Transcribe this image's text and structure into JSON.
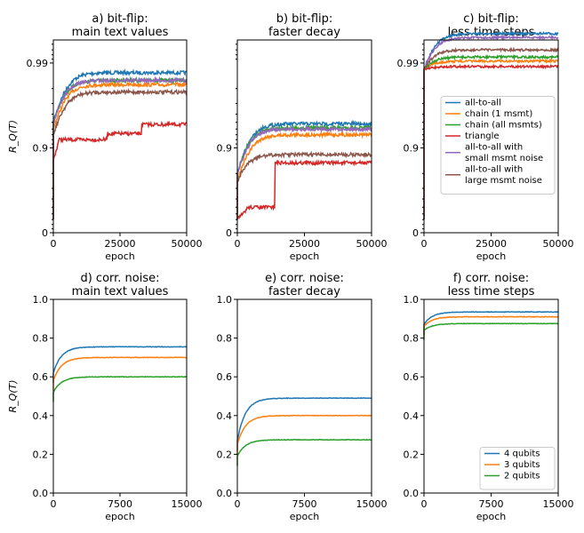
{
  "colors": {
    "blue": "#1f77b4",
    "orange": "#ff7f0e",
    "green": "#2ca02c",
    "red": "#d62728",
    "purple": "#9467bd",
    "brown": "#8c564b"
  },
  "chart_data": [
    {
      "id": "a",
      "type": "line",
      "title": [
        "a) bit-flip:",
        "main text values"
      ],
      "xlabel": "epoch",
      "ylabel": "R_Q(T)",
      "ylabel_visible": true,
      "xlim": [
        0,
        50000
      ],
      "xticks": [
        "0",
        "25000",
        "50000"
      ],
      "yticks": [
        "0",
        "0.9",
        "0.99"
      ],
      "y_scale": "log-like (1 - R)",
      "series": [
        {
          "name": "all-to-all",
          "color": "blue",
          "start": 0.95,
          "final": 0.987,
          "noise": 0.002
        },
        {
          "name": "chain (1 msmt)",
          "color": "orange",
          "start": 0.94,
          "final": 0.982,
          "noise": 0.002
        },
        {
          "name": "chain (all msmts)",
          "color": "green",
          "start": 0.95,
          "final": 0.984,
          "noise": 0.002
        },
        {
          "name": "triangle",
          "color": "red",
          "start": 0.88,
          "final": 0.955,
          "noise": 0.001
        },
        {
          "name": "all-to-all with small msmt noise",
          "color": "purple",
          "start": 0.95,
          "final": 0.984,
          "noise": 0.002
        },
        {
          "name": "all-to-all with large msmt noise",
          "color": "brown",
          "start": 0.93,
          "final": 0.978,
          "noise": 0.002
        }
      ]
    },
    {
      "id": "b",
      "type": "line",
      "title": [
        "b) bit-flip:",
        "faster decay"
      ],
      "xlabel": "epoch",
      "ylabel": "",
      "ylabel_visible": false,
      "xlim": [
        0,
        50000
      ],
      "xticks": [
        "0",
        "25000",
        "50000"
      ],
      "yticks": [
        "0",
        "0.9"
      ],
      "y_scale": "log-like (1 - R)",
      "series": [
        {
          "name": "all-to-all",
          "color": "blue",
          "start": 0.8,
          "final": 0.948
        },
        {
          "name": "chain (1 msmt)",
          "color": "orange",
          "start": 0.75,
          "final": 0.93
        },
        {
          "name": "chain (all msmts)",
          "color": "green",
          "start": 0.8,
          "final": 0.942
        },
        {
          "name": "triangle",
          "color": "red",
          "start": 0.45,
          "final": 0.86
        },
        {
          "name": "all-to-all with small msmt noise",
          "color": "purple",
          "start": 0.8,
          "final": 0.94
        },
        {
          "name": "all-to-all with large msmt noise",
          "color": "brown",
          "start": 0.75,
          "final": 0.88
        }
      ]
    },
    {
      "id": "c",
      "type": "line",
      "title": [
        "c) bit-flip:",
        "less time steps"
      ],
      "xlabel": "epoch",
      "ylabel": "",
      "ylabel_visible": false,
      "xlim": [
        0,
        50000
      ],
      "xticks": [
        "0",
        "25000",
        "50000"
      ],
      "yticks": [
        "0",
        "0.9",
        "0.99"
      ],
      "y_scale": "log-like (1 - R)",
      "legend": {
        "location": "center-right",
        "entries": [
          {
            "label": "all-to-all",
            "color": "blue"
          },
          {
            "label": "chain (1 msmt)",
            "color": "orange"
          },
          {
            "label": "chain (all msmts)",
            "color": "green"
          },
          {
            "label": "triangle",
            "color": "red"
          },
          {
            "label": [
              "all-to-all with",
              "small msmt noise"
            ],
            "color": "purple"
          },
          {
            "label": [
              "all-to-all with",
              "large msmt noise"
            ],
            "color": "brown"
          }
        ]
      },
      "series": [
        {
          "name": "all-to-all",
          "color": "blue",
          "start": 0.988,
          "final": 0.9955
        },
        {
          "name": "chain (1 msmt)",
          "color": "orange",
          "start": 0.988,
          "final": 0.9905
        },
        {
          "name": "chain (all msmts)",
          "color": "green",
          "start": 0.988,
          "final": 0.9915
        },
        {
          "name": "triangle",
          "color": "red",
          "start": 0.988,
          "final": 0.989
        },
        {
          "name": "all-to-all with small msmt noise",
          "color": "purple",
          "start": 0.988,
          "final": 0.995
        },
        {
          "name": "all-to-all with large msmt noise",
          "color": "brown",
          "start": 0.988,
          "final": 0.993
        }
      ]
    },
    {
      "id": "d",
      "type": "line",
      "title": [
        "d) corr. noise:",
        "main text values"
      ],
      "xlabel": "epoch",
      "ylabel": "R_Q(T)",
      "ylabel_visible": true,
      "xlim": [
        0,
        15000
      ],
      "ylim": [
        0.0,
        1.0
      ],
      "xticks": [
        "0",
        "7500",
        "15000"
      ],
      "yticks": [
        "0.0",
        "0.2",
        "0.4",
        "0.6",
        "0.8",
        "1.0"
      ],
      "series": [
        {
          "name": "4 qubits",
          "color": "blue",
          "start": 0.62,
          "final": 0.755
        },
        {
          "name": "3 qubits",
          "color": "orange",
          "start": 0.58,
          "final": 0.7
        },
        {
          "name": "2 qubits",
          "color": "green",
          "start": 0.52,
          "final": 0.6
        }
      ]
    },
    {
      "id": "e",
      "type": "line",
      "title": [
        "e) corr. noise:",
        "faster decay"
      ],
      "xlabel": "epoch",
      "ylabel": "",
      "ylabel_visible": false,
      "xlim": [
        0,
        15000
      ],
      "ylim": [
        0.0,
        1.0
      ],
      "xticks": [
        "0",
        "7500",
        "15000"
      ],
      "yticks": [
        "0.0",
        "0.2",
        "0.4",
        "0.6",
        "0.8",
        "1.0"
      ],
      "series": [
        {
          "name": "4 qubits",
          "color": "blue",
          "start": 0.27,
          "final": 0.49
        },
        {
          "name": "3 qubits",
          "color": "orange",
          "start": 0.25,
          "final": 0.4
        },
        {
          "name": "2 qubits",
          "color": "green",
          "start": 0.19,
          "final": 0.275
        }
      ]
    },
    {
      "id": "f",
      "type": "line",
      "title": [
        "f) corr. noise:",
        "less time steps"
      ],
      "xlabel": "epoch",
      "ylabel": "",
      "ylabel_visible": false,
      "xlim": [
        0,
        15000
      ],
      "ylim": [
        0.0,
        1.0
      ],
      "xticks": [
        "0",
        "7500",
        "15000"
      ],
      "yticks": [
        "0.0",
        "0.2",
        "0.4",
        "0.6",
        "0.8",
        "1.0"
      ],
      "legend": {
        "location": "bottom-right",
        "entries": [
          {
            "label": "4 qubits",
            "color": "blue"
          },
          {
            "label": "3 qubits",
            "color": "orange"
          },
          {
            "label": "2 qubits",
            "color": "green"
          }
        ]
      },
      "series": [
        {
          "name": "4 qubits",
          "color": "blue",
          "start": 0.87,
          "final": 0.935
        },
        {
          "name": "3 qubits",
          "color": "orange",
          "start": 0.86,
          "final": 0.91
        },
        {
          "name": "2 qubits",
          "color": "green",
          "start": 0.84,
          "final": 0.875
        }
      ]
    }
  ]
}
